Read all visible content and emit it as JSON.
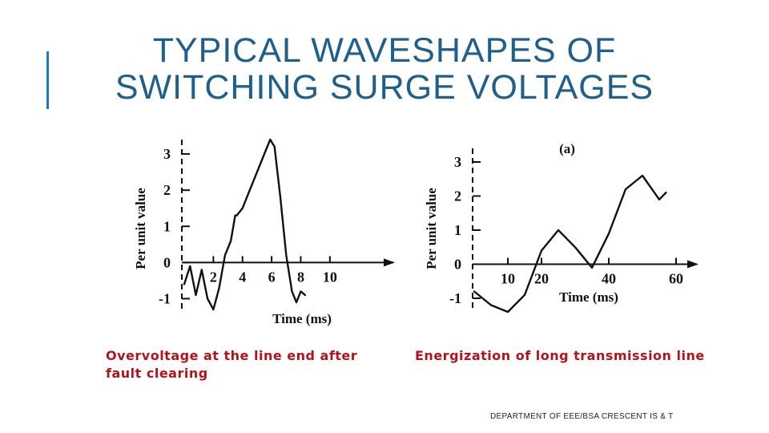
{
  "slide": {
    "title_line1": "TYPICAL WAVESHAPES OF",
    "title_line2": "SWITCHING SURGE VOLTAGES",
    "caption_left_line1": "Overvoltage at the line end after",
    "caption_left_line2": "fault clearing",
    "caption_right": "Energization of long transmission line",
    "footer": "DEPARTMENT OF EEE/BSA CRESCENT IS & T",
    "accent_color": "#1f7ab8",
    "caption_color": "#b5131b"
  },
  "chart_data": [
    {
      "type": "line",
      "title": "",
      "xlabel": "Time (ms)",
      "ylabel": "Per unit value",
      "xlim": [
        0,
        11
      ],
      "ylim": [
        -1.3,
        3.4
      ],
      "x_ticks": [
        2,
        4,
        6,
        8,
        10
      ],
      "y_ticks": [
        -1,
        0,
        1,
        2,
        3
      ],
      "series": [
        {
          "x": [
            0,
            0.4,
            0.8,
            1.2,
            1.6,
            2.0,
            2.4,
            2.8,
            3.2,
            3.5,
            3.6,
            4.0,
            4.5,
            5.0,
            5.5,
            5.9,
            6.2,
            6.6,
            7.0,
            7.4,
            7.7,
            8.0,
            8.3
          ],
          "y": [
            -0.6,
            -0.1,
            -0.9,
            -0.2,
            -1.0,
            -1.3,
            -0.7,
            0.2,
            0.6,
            1.3,
            1.3,
            1.5,
            2.0,
            2.5,
            3.0,
            3.4,
            3.2,
            1.8,
            0.2,
            -0.8,
            -1.1,
            -0.8,
            -0.9
          ]
        }
      ]
    },
    {
      "type": "line",
      "title": "(a)",
      "xlabel": "Time (ms)",
      "ylabel": "Per unit value",
      "xlim": [
        0,
        65
      ],
      "ylim": [
        -1.4,
        3.4
      ],
      "x_ticks": [
        10,
        20,
        40,
        60
      ],
      "y_ticks": [
        -1,
        0,
        1,
        2,
        3
      ],
      "series": [
        {
          "x": [
            0,
            5,
            10,
            15,
            20,
            25,
            30,
            35,
            40,
            45,
            50,
            55,
            57
          ],
          "y": [
            -0.8,
            -1.2,
            -1.4,
            -0.9,
            0.4,
            1.0,
            0.5,
            -0.1,
            0.9,
            2.2,
            2.6,
            1.9,
            2.1
          ]
        }
      ]
    }
  ]
}
